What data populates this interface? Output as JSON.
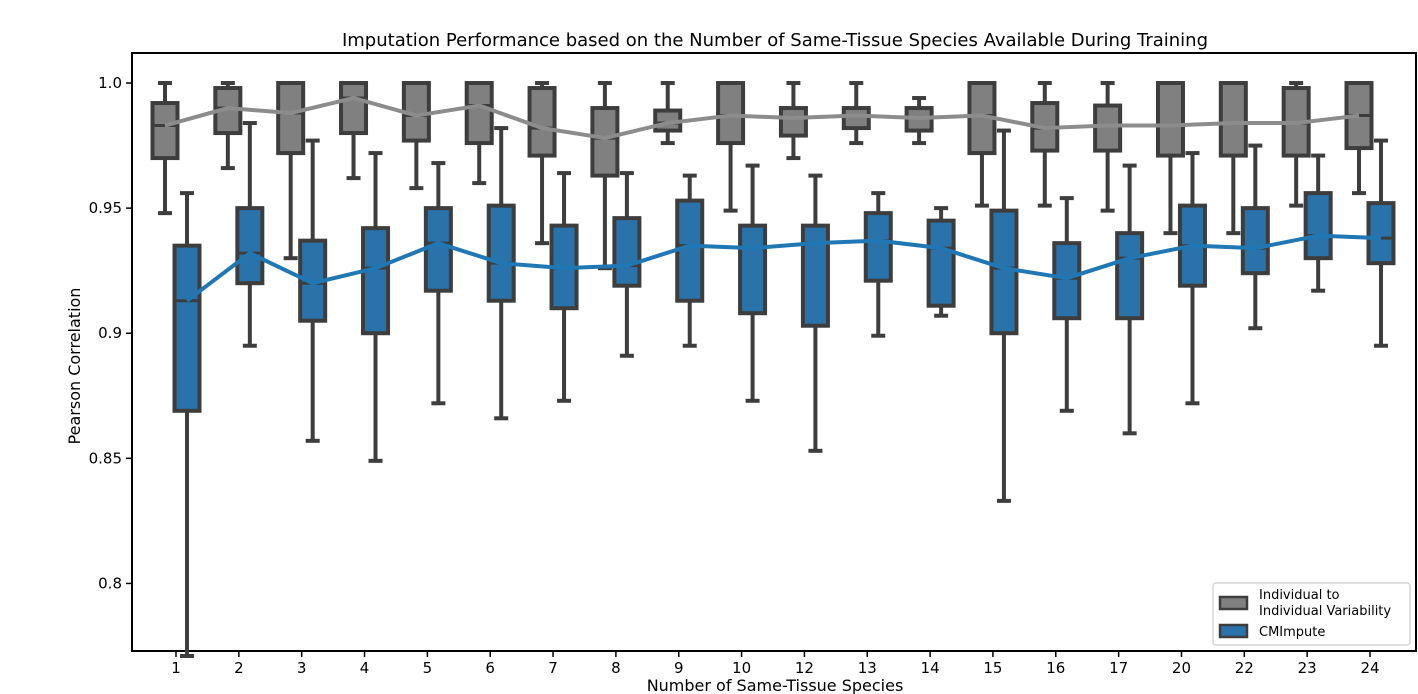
{
  "chart_data": {
    "type": "box",
    "title": "Imputation Performance based on the Number of Same-Tissue Species Available During Training",
    "xlabel": "Number of Same-Tissue Species",
    "ylabel": "Pearson Correlation",
    "ylim": [
      0.773,
      1.012
    ],
    "yticks": [
      0.8,
      0.85,
      0.9,
      0.95,
      1.0
    ],
    "ytick_labels": [
      "0.8",
      "0.85",
      "0.9",
      "0.95",
      "1.0"
    ],
    "categories": [
      "1",
      "2",
      "3",
      "4",
      "5",
      "6",
      "7",
      "8",
      "9",
      "10",
      "12",
      "13",
      "14",
      "15",
      "16",
      "17",
      "20",
      "22",
      "23",
      "24"
    ],
    "legend": {
      "position": "bottom-right",
      "entries": [
        {
          "label_lines": [
            "Individual to",
            "Individual Variability"
          ],
          "color": "#808080"
        },
        {
          "label_lines": [
            "CMImpute"
          ],
          "color": "#2a73aa"
        }
      ]
    },
    "series": [
      {
        "name": "Individual to Individual Variability",
        "color": "#808080",
        "line_color": "#8c8c8c",
        "boxes": [
          {
            "whislo": 0.948,
            "q1": 0.97,
            "med": 0.983,
            "q3": 0.992,
            "whishi": 1.0
          },
          {
            "whislo": 0.966,
            "q1": 0.98,
            "med": 0.99,
            "q3": 0.998,
            "whishi": 1.0
          },
          {
            "whislo": 0.93,
            "q1": 0.972,
            "med": 0.988,
            "q3": 1.0,
            "whishi": 1.0
          },
          {
            "whislo": 0.962,
            "q1": 0.98,
            "med": 0.994,
            "q3": 1.0,
            "whishi": 1.0
          },
          {
            "whislo": 0.958,
            "q1": 0.977,
            "med": 0.987,
            "q3": 1.0,
            "whishi": 1.0
          },
          {
            "whislo": 0.96,
            "q1": 0.976,
            "med": 0.991,
            "q3": 1.0,
            "whishi": 1.0
          },
          {
            "whislo": 0.936,
            "q1": 0.971,
            "med": 0.982,
            "q3": 0.998,
            "whishi": 1.0
          },
          {
            "whislo": 0.926,
            "q1": 0.963,
            "med": 0.978,
            "q3": 0.99,
            "whishi": 1.0
          },
          {
            "whislo": 0.976,
            "q1": 0.981,
            "med": 0.984,
            "q3": 0.989,
            "whishi": 1.0
          },
          {
            "whislo": 0.949,
            "q1": 0.976,
            "med": 0.987,
            "q3": 1.0,
            "whishi": 1.0
          },
          {
            "whislo": 0.97,
            "q1": 0.979,
            "med": 0.986,
            "q3": 0.99,
            "whishi": 1.0
          },
          {
            "whislo": 0.976,
            "q1": 0.982,
            "med": 0.987,
            "q3": 0.99,
            "whishi": 1.0
          },
          {
            "whislo": 0.976,
            "q1": 0.981,
            "med": 0.986,
            "q3": 0.99,
            "whishi": 0.994
          },
          {
            "whislo": 0.951,
            "q1": 0.972,
            "med": 0.987,
            "q3": 1.0,
            "whishi": 1.0
          },
          {
            "whislo": 0.951,
            "q1": 0.973,
            "med": 0.982,
            "q3": 0.992,
            "whishi": 1.0
          },
          {
            "whislo": 0.949,
            "q1": 0.973,
            "med": 0.983,
            "q3": 0.991,
            "whishi": 1.0
          },
          {
            "whislo": 0.94,
            "q1": 0.971,
            "med": 0.983,
            "q3": 1.0,
            "whishi": 1.0
          },
          {
            "whislo": 0.94,
            "q1": 0.971,
            "med": 0.984,
            "q3": 1.0,
            "whishi": 1.0
          },
          {
            "whislo": 0.951,
            "q1": 0.971,
            "med": 0.984,
            "q3": 0.998,
            "whishi": 1.0
          },
          {
            "whislo": 0.956,
            "q1": 0.974,
            "med": 0.987,
            "q3": 1.0,
            "whishi": 1.0
          }
        ]
      },
      {
        "name": "CMImpute",
        "color": "#2a73aa",
        "line_color": "#1f77b4",
        "boxes": [
          {
            "whislo": 0.771,
            "q1": 0.869,
            "med": 0.913,
            "q3": 0.935,
            "whishi": 0.956
          },
          {
            "whislo": 0.895,
            "q1": 0.92,
            "med": 0.932,
            "q3": 0.95,
            "whishi": 0.984
          },
          {
            "whislo": 0.857,
            "q1": 0.905,
            "med": 0.92,
            "q3": 0.937,
            "whishi": 0.977
          },
          {
            "whislo": 0.849,
            "q1": 0.9,
            "med": 0.926,
            "q3": 0.942,
            "whishi": 0.972
          },
          {
            "whislo": 0.872,
            "q1": 0.917,
            "med": 0.936,
            "q3": 0.95,
            "whishi": 0.968
          },
          {
            "whislo": 0.866,
            "q1": 0.913,
            "med": 0.928,
            "q3": 0.951,
            "whishi": 0.982
          },
          {
            "whislo": 0.873,
            "q1": 0.91,
            "med": 0.926,
            "q3": 0.943,
            "whishi": 0.964
          },
          {
            "whislo": 0.891,
            "q1": 0.919,
            "med": 0.927,
            "q3": 0.946,
            "whishi": 0.964
          },
          {
            "whislo": 0.895,
            "q1": 0.913,
            "med": 0.935,
            "q3": 0.953,
            "whishi": 0.963
          },
          {
            "whislo": 0.873,
            "q1": 0.908,
            "med": 0.934,
            "q3": 0.943,
            "whishi": 0.967
          },
          {
            "whislo": 0.853,
            "q1": 0.903,
            "med": 0.936,
            "q3": 0.943,
            "whishi": 0.963
          },
          {
            "whislo": 0.899,
            "q1": 0.921,
            "med": 0.937,
            "q3": 0.948,
            "whishi": 0.956
          },
          {
            "whislo": 0.907,
            "q1": 0.911,
            "med": 0.934,
            "q3": 0.945,
            "whishi": 0.95
          },
          {
            "whislo": 0.833,
            "q1": 0.9,
            "med": 0.926,
            "q3": 0.949,
            "whishi": 0.981
          },
          {
            "whislo": 0.869,
            "q1": 0.906,
            "med": 0.922,
            "q3": 0.936,
            "whishi": 0.954
          },
          {
            "whislo": 0.86,
            "q1": 0.906,
            "med": 0.93,
            "q3": 0.94,
            "whishi": 0.967
          },
          {
            "whislo": 0.872,
            "q1": 0.919,
            "med": 0.935,
            "q3": 0.951,
            "whishi": 0.972
          },
          {
            "whislo": 0.902,
            "q1": 0.924,
            "med": 0.934,
            "q3": 0.95,
            "whishi": 0.975
          },
          {
            "whislo": 0.917,
            "q1": 0.93,
            "med": 0.939,
            "q3": 0.956,
            "whishi": 0.971
          },
          {
            "whislo": 0.895,
            "q1": 0.928,
            "med": 0.938,
            "q3": 0.952,
            "whishi": 0.977
          }
        ]
      }
    ]
  }
}
